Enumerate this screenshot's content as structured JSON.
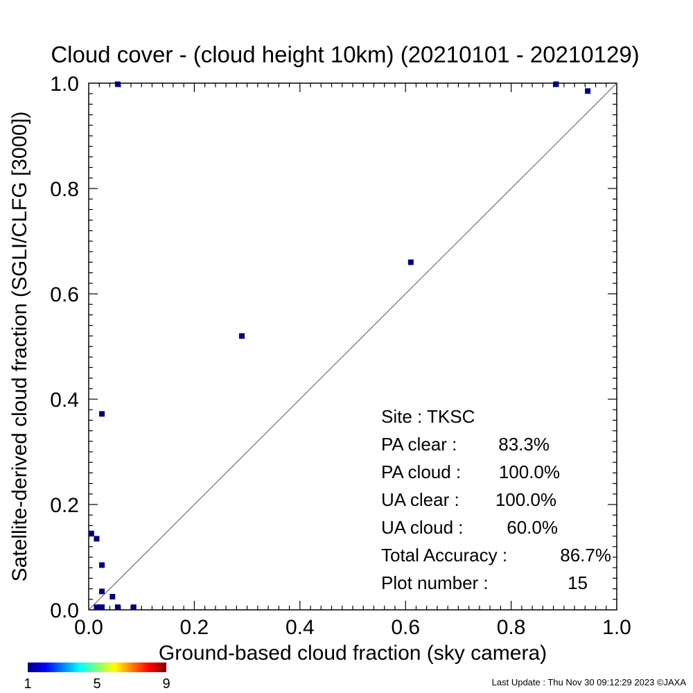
{
  "chart_data": {
    "type": "scatter",
    "title": "Cloud cover - (cloud height 10km)  (20210101 - 20210129)",
    "xlabel": "Ground-based cloud fraction (sky camera)",
    "ylabel": "Satellite-derived cloud fraction (SGLI/CLFG [3000])",
    "xlim": [
      0,
      1
    ],
    "ylim": [
      0,
      1
    ],
    "xticks": [
      "0.0",
      "0.2",
      "0.4",
      "0.6",
      "0.8",
      "1.0"
    ],
    "yticks": [
      "0.0",
      "0.2",
      "0.4",
      "0.6",
      "0.8",
      "1.0"
    ],
    "grid": false,
    "reference_line": "y = x",
    "point_color": "#00007f",
    "points": [
      {
        "x": 0.055,
        "y": 0.998,
        "count": 1
      },
      {
        "x": 0.885,
        "y": 0.998,
        "count": 1
      },
      {
        "x": 0.945,
        "y": 0.985,
        "count": 1
      },
      {
        "x": 0.61,
        "y": 0.66,
        "count": 1
      },
      {
        "x": 0.29,
        "y": 0.52,
        "count": 1
      },
      {
        "x": 0.025,
        "y": 0.372,
        "count": 1
      },
      {
        "x": 0.005,
        "y": 0.145,
        "count": 1
      },
      {
        "x": 0.015,
        "y": 0.135,
        "count": 1
      },
      {
        "x": 0.025,
        "y": 0.085,
        "count": 1
      },
      {
        "x": 0.025,
        "y": 0.035,
        "count": 1
      },
      {
        "x": 0.045,
        "y": 0.025,
        "count": 1
      },
      {
        "x": 0.015,
        "y": 0.005,
        "count": 1
      },
      {
        "x": 0.025,
        "y": 0.005,
        "count": 1
      },
      {
        "x": 0.055,
        "y": 0.005,
        "count": 1
      },
      {
        "x": 0.085,
        "y": 0.005,
        "count": 1
      }
    ],
    "colorbar": {
      "min_label": "1",
      "mid_label": "5",
      "max_label": "9",
      "colors": [
        "#00007f",
        "#0000ff",
        "#0080ff",
        "#00ffff",
        "#80ff80",
        "#ffff00",
        "#ff8000",
        "#ff0000",
        "#7f0000"
      ]
    }
  },
  "stats": [
    {
      "label": "Site : TKSC",
      "value": ""
    },
    {
      "label": "PA clear :",
      "value": "83.3%"
    },
    {
      "label": "PA cloud :",
      "value": "100.0%"
    },
    {
      "label": "UA clear :",
      "value": "100.0%"
    },
    {
      "label": "UA cloud :",
      "value": "60.0%"
    },
    {
      "label": "Total Accuracy :",
      "value": "86.7%"
    },
    {
      "label": "Plot number :",
      "value": "15"
    }
  ],
  "footer": "Last Update : Thu Nov 30 09:12:29 2023  ©JAXA"
}
